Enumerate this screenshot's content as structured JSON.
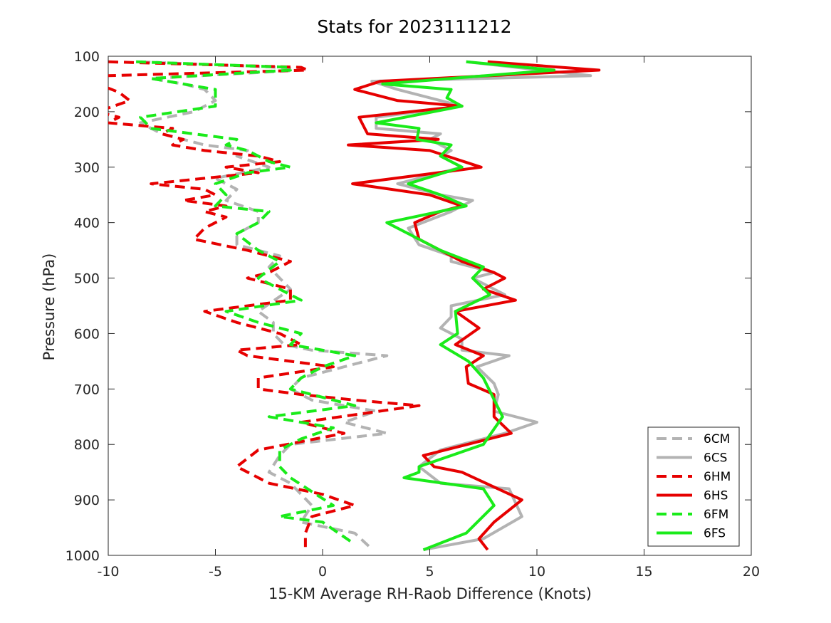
{
  "chart_data": {
    "type": "line",
    "title": "Stats for 2023111212",
    "xlabel": "15-KM Average RH-Raob Difference (Knots)",
    "ylabel": "Pressure (hPa)",
    "xlim": [
      -10,
      20
    ],
    "ylim": [
      100,
      1000
    ],
    "y_reversed": true,
    "xticks": [
      "-10",
      "-5",
      "0",
      "5",
      "10",
      "15",
      "20"
    ],
    "yticks": [
      "100",
      "200",
      "300",
      "400",
      "500",
      "600",
      "700",
      "800",
      "900",
      "1000"
    ],
    "legend_position": "bottom-right",
    "grid": false,
    "series": [
      {
        "name": "6CM",
        "color": "#b3b3b3",
        "dash": true,
        "points": [
          [
            -8.5,
            110
          ],
          [
            -2,
            120
          ],
          [
            -1,
            125
          ],
          [
            -8,
            140
          ],
          [
            -6.5,
            150
          ],
          [
            -5.5,
            160
          ],
          [
            -5,
            180
          ],
          [
            -6,
            200
          ],
          [
            -8.5,
            220
          ],
          [
            -7.5,
            240
          ],
          [
            -5.5,
            260
          ],
          [
            -3.5,
            270
          ],
          [
            -4,
            280
          ],
          [
            -2.5,
            300
          ],
          [
            -5,
            320
          ],
          [
            -4,
            340
          ],
          [
            -4.5,
            360
          ],
          [
            -3,
            380
          ],
          [
            -3,
            400
          ],
          [
            -4,
            420
          ],
          [
            -4,
            440
          ],
          [
            -2,
            460
          ],
          [
            -2.5,
            480
          ],
          [
            -2,
            500
          ],
          [
            -1.5,
            520
          ],
          [
            -3,
            560
          ],
          [
            -2.3,
            580
          ],
          [
            -2.3,
            600
          ],
          [
            -1.8,
            620
          ],
          [
            -0.5,
            630
          ],
          [
            3,
            640
          ],
          [
            1,
            660
          ],
          [
            -1,
            680
          ],
          [
            -1.5,
            700
          ],
          [
            -0.5,
            720
          ],
          [
            2.5,
            740
          ],
          [
            1,
            760
          ],
          [
            3,
            780
          ],
          [
            -1.5,
            800
          ],
          [
            -2,
            820
          ],
          [
            -2.5,
            850
          ],
          [
            -1.5,
            870
          ],
          [
            -1,
            890
          ],
          [
            -0.5,
            910
          ],
          [
            -1,
            940
          ],
          [
            1.5,
            960
          ],
          [
            2.2,
            985
          ]
        ]
      },
      {
        "name": "6CS",
        "color": "#b3b3b3",
        "dash": false,
        "points": [
          [
            6.7,
            110
          ],
          [
            12.5,
            135
          ],
          [
            2.3,
            145
          ],
          [
            3.5,
            160
          ],
          [
            5.5,
            180
          ],
          [
            6.5,
            190
          ],
          [
            2.5,
            210
          ],
          [
            2.5,
            230
          ],
          [
            5.5,
            240
          ],
          [
            5,
            250
          ],
          [
            6,
            270
          ],
          [
            5.5,
            280
          ],
          [
            6.5,
            300
          ],
          [
            3.5,
            330
          ],
          [
            5.5,
            350
          ],
          [
            7,
            360
          ],
          [
            6,
            380
          ],
          [
            4,
            410
          ],
          [
            4.5,
            440
          ],
          [
            6,
            460
          ],
          [
            6,
            470
          ],
          [
            8,
            490
          ],
          [
            7,
            500
          ],
          [
            8.5,
            530
          ],
          [
            6,
            550
          ],
          [
            6,
            570
          ],
          [
            5.5,
            590
          ],
          [
            6.5,
            610
          ],
          [
            6.5,
            630
          ],
          [
            8.7,
            640
          ],
          [
            7.2,
            660
          ],
          [
            8,
            690
          ],
          [
            8.2,
            710
          ],
          [
            8,
            740
          ],
          [
            10,
            760
          ],
          [
            8.5,
            780
          ],
          [
            5.5,
            810
          ],
          [
            4.5,
            840
          ],
          [
            5.5,
            870
          ],
          [
            8.7,
            880
          ],
          [
            9.3,
            930
          ],
          [
            7.5,
            970
          ],
          [
            4.7,
            990
          ]
        ]
      },
      {
        "name": "6HM",
        "color": "#e60000",
        "dash": true,
        "points": [
          [
            -10,
            110
          ],
          [
            -1,
            120
          ],
          [
            -0.7,
            125
          ],
          [
            -10,
            135
          ],
          [
            -10.5,
            150
          ],
          [
            -9.5,
            165
          ],
          [
            -9,
            180
          ],
          [
            -10.5,
            200
          ],
          [
            -9.5,
            210
          ],
          [
            -10,
            220
          ],
          [
            -7,
            230
          ],
          [
            -7.5,
            240
          ],
          [
            -6.5,
            250
          ],
          [
            -7,
            260
          ],
          [
            -5.5,
            270
          ],
          [
            -3,
            280
          ],
          [
            -2,
            290
          ],
          [
            -4.5,
            300
          ],
          [
            -3,
            310
          ],
          [
            -5.5,
            320
          ],
          [
            -8,
            330
          ],
          [
            -5.5,
            340
          ],
          [
            -5,
            350
          ],
          [
            -6.5,
            360
          ],
          [
            -4.5,
            370
          ],
          [
            -5.5,
            380
          ],
          [
            -4.5,
            390
          ],
          [
            -5.5,
            410
          ],
          [
            -6,
            430
          ],
          [
            -3.5,
            450
          ],
          [
            -1.5,
            470
          ],
          [
            -2.5,
            490
          ],
          [
            -3.5,
            500
          ],
          [
            -2.5,
            510
          ],
          [
            -1.5,
            520
          ],
          [
            -1.5,
            540
          ],
          [
            -5.5,
            560
          ],
          [
            -4,
            580
          ],
          [
            -2,
            600
          ],
          [
            -1,
            620
          ],
          [
            -4,
            630
          ],
          [
            -3.5,
            640
          ],
          [
            0.5,
            660
          ],
          [
            -3,
            680
          ],
          [
            -3,
            700
          ],
          [
            -1,
            710
          ],
          [
            1.5,
            720
          ],
          [
            4.5,
            730
          ],
          [
            -1,
            760
          ],
          [
            1,
            780
          ],
          [
            -3,
            810
          ],
          [
            -4,
            840
          ],
          [
            -2.5,
            870
          ],
          [
            0,
            890
          ],
          [
            1.5,
            910
          ],
          [
            -0.5,
            930
          ],
          [
            -0.8,
            960
          ],
          [
            -0.8,
            985
          ]
        ]
      },
      {
        "name": "6HS",
        "color": "#e60000",
        "dash": false,
        "points": [
          [
            7.7,
            110
          ],
          [
            12.9,
            125
          ],
          [
            2.7,
            145
          ],
          [
            1.5,
            160
          ],
          [
            3.5,
            180
          ],
          [
            6.5,
            190
          ],
          [
            1.7,
            210
          ],
          [
            2.1,
            240
          ],
          [
            5.4,
            250
          ],
          [
            1.2,
            260
          ],
          [
            5,
            270
          ],
          [
            7.4,
            300
          ],
          [
            1.4,
            330
          ],
          [
            5,
            350
          ],
          [
            6.5,
            370
          ],
          [
            5.5,
            380
          ],
          [
            4.3,
            400
          ],
          [
            4.5,
            430
          ],
          [
            6.5,
            470
          ],
          [
            8,
            490
          ],
          [
            8.5,
            500
          ],
          [
            7.5,
            520
          ],
          [
            9,
            540
          ],
          [
            6.2,
            560
          ],
          [
            7.3,
            590
          ],
          [
            6.2,
            620
          ],
          [
            7.5,
            640
          ],
          [
            6.7,
            660
          ],
          [
            6.8,
            690
          ],
          [
            8,
            710
          ],
          [
            8,
            750
          ],
          [
            8.8,
            780
          ],
          [
            4.7,
            820
          ],
          [
            5.2,
            840
          ],
          [
            6.5,
            850
          ],
          [
            9.3,
            900
          ],
          [
            8,
            940
          ],
          [
            7.3,
            970
          ],
          [
            7.7,
            990
          ]
        ]
      },
      {
        "name": "6FM",
        "color": "#1aeb1a",
        "dash": true,
        "points": [
          [
            -8.7,
            110
          ],
          [
            -1.5,
            120
          ],
          [
            -1.5,
            125
          ],
          [
            -8,
            140
          ],
          [
            -5,
            160
          ],
          [
            -5,
            180
          ],
          [
            -5,
            190
          ],
          [
            -8.5,
            210
          ],
          [
            -8,
            230
          ],
          [
            -4,
            250
          ],
          [
            -4.5,
            260
          ],
          [
            -3.5,
            270
          ],
          [
            -2.5,
            290
          ],
          [
            -1.5,
            300
          ],
          [
            -3.5,
            310
          ],
          [
            -5,
            330
          ],
          [
            -4.5,
            350
          ],
          [
            -5,
            370
          ],
          [
            -2.5,
            380
          ],
          [
            -3,
            400
          ],
          [
            -4,
            420
          ],
          [
            -3,
            450
          ],
          [
            -2,
            470
          ],
          [
            -3,
            500
          ],
          [
            -2,
            520
          ],
          [
            -1,
            540
          ],
          [
            -4.5,
            560
          ],
          [
            -3,
            580
          ],
          [
            -1,
            600
          ],
          [
            -1.5,
            620
          ],
          [
            1.5,
            640
          ],
          [
            0,
            660
          ],
          [
            -1,
            680
          ],
          [
            -1.5,
            700
          ],
          [
            1.5,
            730
          ],
          [
            -2.5,
            750
          ],
          [
            0.5,
            770
          ],
          [
            -1,
            790
          ],
          [
            -2,
            810
          ],
          [
            -2,
            840
          ],
          [
            -1.5,
            860
          ],
          [
            0.5,
            910
          ],
          [
            -2,
            930
          ],
          [
            0,
            940
          ],
          [
            1.5,
            980
          ]
        ]
      },
      {
        "name": "6FS",
        "color": "#1aeb1a",
        "dash": false,
        "points": [
          [
            6.7,
            110
          ],
          [
            10.8,
            125
          ],
          [
            2.8,
            150
          ],
          [
            6,
            160
          ],
          [
            5.8,
            175
          ],
          [
            6.5,
            190
          ],
          [
            2.5,
            220
          ],
          [
            4.5,
            230
          ],
          [
            4.4,
            250
          ],
          [
            6,
            260
          ],
          [
            5.5,
            280
          ],
          [
            6.5,
            300
          ],
          [
            4,
            330
          ],
          [
            5.5,
            350
          ],
          [
            6.7,
            370
          ],
          [
            3,
            400
          ],
          [
            4.5,
            430
          ],
          [
            5.5,
            450
          ],
          [
            7.5,
            480
          ],
          [
            7,
            500
          ],
          [
            7.8,
            530
          ],
          [
            6.2,
            560
          ],
          [
            6.3,
            600
          ],
          [
            5.5,
            620
          ],
          [
            6.8,
            650
          ],
          [
            7.5,
            680
          ],
          [
            8.4,
            750
          ],
          [
            7.5,
            800
          ],
          [
            4.5,
            840
          ],
          [
            4.5,
            850
          ],
          [
            3.8,
            860
          ],
          [
            7.5,
            880
          ],
          [
            8,
            910
          ],
          [
            6.7,
            960
          ],
          [
            4.7,
            990
          ]
        ]
      }
    ]
  }
}
